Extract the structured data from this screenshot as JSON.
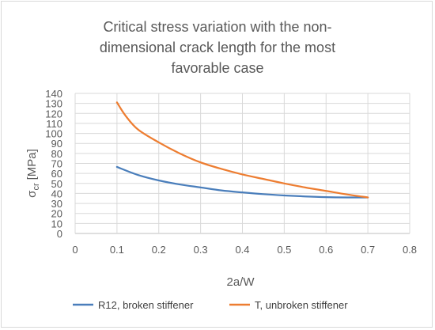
{
  "chart_data": {
    "type": "line",
    "title_lines": [
      "Critical stress variation with the non-",
      "dimensional  crack length for the most",
      "favorable case"
    ],
    "xlabel": "2a/W",
    "ylabel_main": "σ",
    "ylabel_sub": "cr",
    "ylabel_unit": "[MPa]",
    "xlim": [
      0,
      0.8
    ],
    "ylim": [
      0,
      140
    ],
    "xticks": [
      0,
      0.1,
      0.2,
      0.3,
      0.4,
      0.5,
      0.6,
      0.7,
      0.8
    ],
    "yticks": [
      0,
      10,
      20,
      30,
      40,
      50,
      60,
      70,
      80,
      90,
      100,
      110,
      120,
      130,
      140
    ],
    "xtick_labels": [
      "0",
      "0.1",
      "0.2",
      "0.3",
      "0.4",
      "0.5",
      "0.6",
      "0.7",
      "0.8"
    ],
    "ytick_labels": [
      "0",
      "10",
      "20",
      "30",
      "40",
      "50",
      "60",
      "70",
      "80",
      "90",
      "100",
      "110",
      "120",
      "130",
      "140"
    ],
    "grid": true,
    "legend_position": "bottom",
    "series": [
      {
        "name": "R12, broken stiffener",
        "color": "#4a7ebb",
        "x": [
          0.1,
          0.15,
          0.2,
          0.25,
          0.3,
          0.35,
          0.4,
          0.45,
          0.5,
          0.55,
          0.6,
          0.65,
          0.7
        ],
        "y": [
          66.5,
          58.5,
          53,
          49,
          46,
          43,
          41,
          39.3,
          38,
          37,
          36.3,
          36,
          36
        ]
      },
      {
        "name": "T, unbroken stiffener",
        "color": "#ed7d31",
        "x": [
          0.1,
          0.12,
          0.15,
          0.2,
          0.25,
          0.3,
          0.35,
          0.4,
          0.45,
          0.5,
          0.55,
          0.6,
          0.65,
          0.7
        ],
        "y": [
          131,
          118,
          104,
          91,
          80,
          71,
          64.5,
          59,
          54.5,
          50,
          46,
          42.5,
          39,
          36
        ]
      }
    ]
  }
}
